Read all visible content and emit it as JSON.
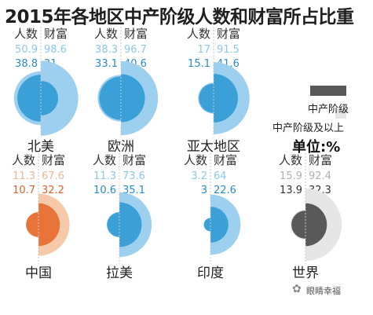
{
  "title": "2015年各地区中产阶级人数和财富所占比重",
  "header_labels": {
    "population": "人数",
    "wealth": "财富"
  },
  "legend": {
    "middle_class": "中产阶级",
    "middle_class_and_above": "中产阶级及以上",
    "unit": "单位:%"
  },
  "watermark": "眼睛幸福",
  "watermark_icon": "wechat-icon",
  "chart_data": {
    "type": "semicircle-pairs",
    "title": "2015年各地区中产阶级人数和财富所占比重",
    "unit": "%",
    "series": [
      {
        "name": "中产阶级及以上",
        "key": "above"
      },
      {
        "name": "中产阶级",
        "key": "mid"
      }
    ],
    "regions": [
      {
        "name": "北美",
        "pop_above": 50.9,
        "wealth_above": 98.6,
        "pop_mid": 38.8,
        "wealth_mid": 21,
        "color_above": "#9dd0ee",
        "color_mid": "#3ba0d8",
        "label_above_color": "#8cc8ea",
        "label_mid_color": "#2b8cc4"
      },
      {
        "name": "欧洲",
        "pop_above": 38.3,
        "wealth_above": 96.7,
        "pop_mid": 33.1,
        "wealth_mid": 40.6,
        "color_above": "#9dd0ee",
        "color_mid": "#3ba0d8",
        "label_above_color": "#8cc8ea",
        "label_mid_color": "#2b8cc4"
      },
      {
        "name": "亚太地区",
        "pop_above": 17,
        "wealth_above": 91.5,
        "pop_mid": 15.1,
        "wealth_mid": 41.6,
        "color_above": "#9dd0ee",
        "color_mid": "#3ba0d8",
        "label_above_color": "#8cc8ea",
        "label_mid_color": "#2b8cc4"
      },
      {
        "name": "中国",
        "pop_above": 11.3,
        "wealth_above": 67.6,
        "pop_mid": 10.7,
        "wealth_mid": 32.2,
        "color_above": "#f6c9a8",
        "color_mid": "#e8743a",
        "label_above_color": "#e8b898",
        "label_mid_color": "#d9652c"
      },
      {
        "name": "拉美",
        "pop_above": 11.3,
        "wealth_above": 73.6,
        "pop_mid": 10.6,
        "wealth_mid": 35.1,
        "color_above": "#9dd0ee",
        "color_mid": "#3ba0d8",
        "label_above_color": "#8cc8ea",
        "label_mid_color": "#2b8cc4"
      },
      {
        "name": "印度",
        "pop_above": 3.2,
        "wealth_above": 64,
        "pop_mid": 3,
        "wealth_mid": 22.6,
        "color_above": "#9dd0ee",
        "color_mid": "#3ba0d8",
        "label_above_color": "#8cc8ea",
        "label_mid_color": "#2b8cc4"
      },
      {
        "name": "世界",
        "pop_above": 15.9,
        "wealth_above": 92.4,
        "pop_mid": 13.9,
        "wealth_mid": 32.3,
        "color_above": "#e6e6e6",
        "color_mid": "#595959",
        "label_above_color": "#b0b0b0",
        "label_mid_color": "#333333"
      }
    ],
    "legend_colors": {
      "middle_class": "#595959",
      "middle_class_and_above": "#e6e6e6"
    }
  }
}
